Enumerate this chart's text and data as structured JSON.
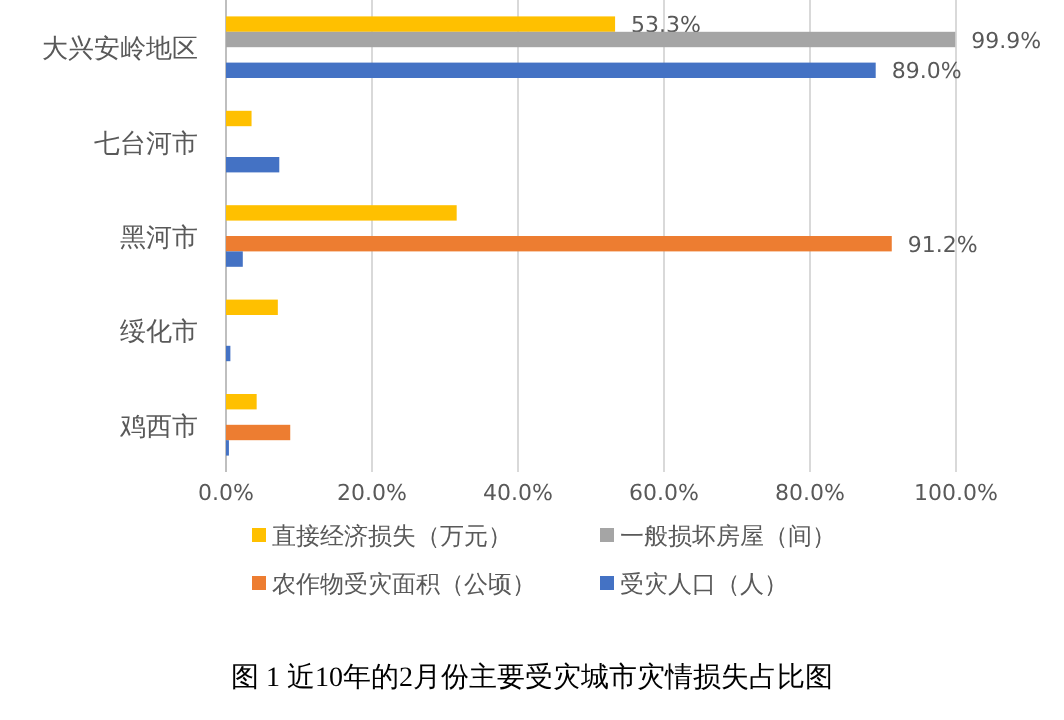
{
  "chart_data": {
    "type": "bar",
    "orientation": "horizontal",
    "title": "图 1 近10年的2月份主要受灾城市灾情损失占比图",
    "categories": [
      "大兴安岭地区",
      "七台河市",
      "黑河市",
      "绥化市",
      "鸡西市"
    ],
    "series": [
      {
        "name": "直接经济损失（万元）",
        "color": "#ffc000",
        "values": [
          53.3,
          3.5,
          31.6,
          7.1,
          4.2
        ],
        "value_labels": [
          "53.3%",
          null,
          null,
          null,
          null
        ]
      },
      {
        "name": "一般损坏房屋（间）",
        "color": "#a5a5a5",
        "values": [
          99.9,
          null,
          null,
          null,
          null
        ],
        "value_labels": [
          "99.9%",
          null,
          null,
          null,
          null
        ]
      },
      {
        "name": "农作物受灾面积（公顷）",
        "color": "#ed7d31",
        "values": [
          null,
          null,
          91.2,
          null,
          8.8
        ],
        "value_labels": [
          null,
          null,
          "91.2%",
          null,
          null
        ]
      },
      {
        "name": "受灾人口（人）",
        "color": "#4472c4",
        "values": [
          89.0,
          7.3,
          2.3,
          0.6,
          0.4
        ],
        "value_labels": [
          "89.0%",
          null,
          null,
          null,
          null
        ]
      }
    ],
    "xlim": [
      0,
      100
    ],
    "xticks": [
      {
        "value": 0,
        "label": "0.0%"
      },
      {
        "value": 20,
        "label": "20.0%"
      },
      {
        "value": 40,
        "label": "40.0%"
      },
      {
        "value": 60,
        "label": "60.0%"
      },
      {
        "value": 80,
        "label": "80.0%"
      },
      {
        "value": 100,
        "label": "100.0%"
      }
    ],
    "grid": "x",
    "legend": "bottom"
  }
}
